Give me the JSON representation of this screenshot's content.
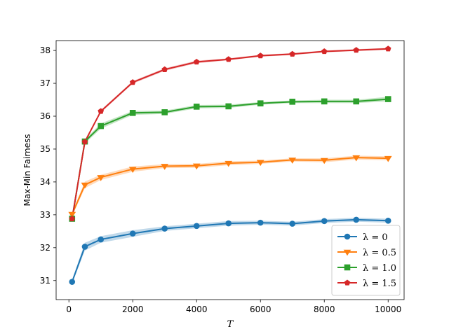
{
  "chart_data": {
    "type": "line",
    "title": "",
    "xlabel": "T",
    "ylabel": "Max-Min Fairness",
    "xlim": [
      -400,
      10500
    ],
    "ylim": [
      30.42,
      38.3
    ],
    "xticks": [
      0,
      2000,
      4000,
      6000,
      8000,
      10000
    ],
    "yticks": [
      31,
      32,
      33,
      34,
      35,
      36,
      37,
      38
    ],
    "grid": false,
    "legend_position": "lower-right",
    "x": [
      100,
      500,
      1000,
      2000,
      3000,
      4000,
      5000,
      6000,
      7000,
      8000,
      9000,
      10000
    ],
    "series": [
      {
        "name": "λ = 0",
        "color": "#1f77b4",
        "marker": "circle",
        "values": [
          30.96,
          32.03,
          32.25,
          32.43,
          32.58,
          32.66,
          32.74,
          32.76,
          32.73,
          32.81,
          32.85,
          32.82
        ],
        "band": [
          0.06,
          0.12,
          0.1,
          0.1,
          0.07,
          0.07,
          0.07,
          0.06,
          0.06,
          0.06,
          0.06,
          0.06
        ]
      },
      {
        "name": "λ = 0.5",
        "color": "#ff7f0e",
        "marker": "triangle-down",
        "values": [
          33.02,
          33.91,
          34.14,
          34.39,
          34.48,
          34.49,
          34.57,
          34.6,
          34.67,
          34.66,
          34.74,
          34.72
        ],
        "band": [
          0.06,
          0.1,
          0.08,
          0.08,
          0.06,
          0.06,
          0.06,
          0.05,
          0.05,
          0.06,
          0.06,
          0.06
        ]
      },
      {
        "name": "λ = 1.0",
        "color": "#2ca02c",
        "marker": "square",
        "values": [
          32.88,
          35.23,
          35.7,
          36.1,
          36.12,
          36.29,
          36.3,
          36.39,
          36.44,
          36.45,
          36.45,
          36.52
        ],
        "band": [
          0.05,
          0.06,
          0.08,
          0.06,
          0.05,
          0.05,
          0.05,
          0.04,
          0.04,
          0.05,
          0.05,
          0.07
        ]
      },
      {
        "name": "λ = 1.5",
        "color": "#d62728",
        "marker": "pentagon",
        "values": [
          32.88,
          35.22,
          36.15,
          37.03,
          37.42,
          37.65,
          37.73,
          37.84,
          37.89,
          37.97,
          38.01,
          38.05
        ],
        "band": [
          0.04,
          0.05,
          0.04,
          0.04,
          0.04,
          0.04,
          0.03,
          0.03,
          0.03,
          0.03,
          0.03,
          0.03
        ]
      }
    ]
  }
}
